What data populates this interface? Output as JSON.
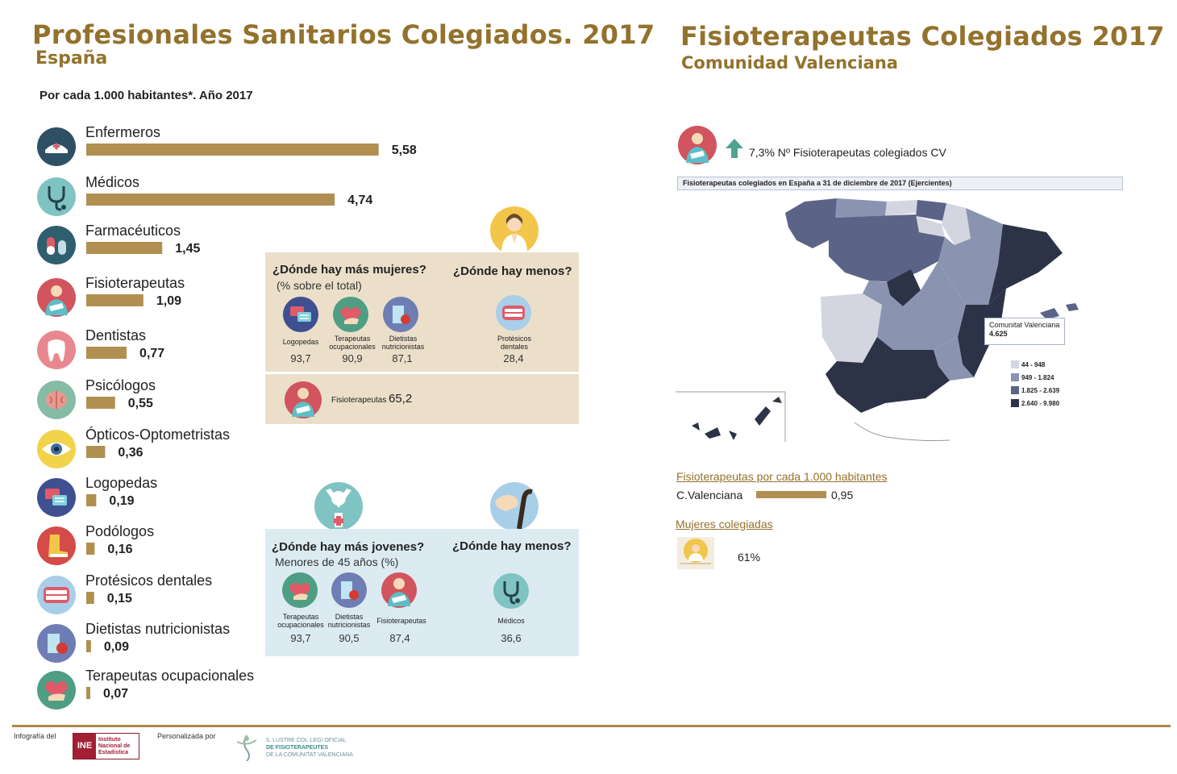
{
  "left": {
    "title": "Profesionales Sanitarios Colegiados. 2017",
    "subtitle": "España",
    "caption": "Por cada 1.000 habitantes*. Año 2017"
  },
  "chart_data": {
    "type": "bar",
    "orientation": "horizontal",
    "categories": [
      "Enfermeros",
      "Médicos",
      "Farmacéuticos",
      "Fisioterapeutas",
      "Dentistas",
      "Psicólogos",
      "Ópticos-Optometristas",
      "Logopedas",
      "Podólogos",
      "Protésicos dentales",
      "Dietistas nutricionistas",
      "Terapeutas ocupacionales"
    ],
    "values": [
      5.58,
      4.74,
      1.45,
      1.09,
      0.77,
      0.55,
      0.36,
      0.19,
      0.16,
      0.15,
      0.09,
      0.07
    ],
    "value_labels": [
      "5,58",
      "4,74",
      "1,45",
      "1,09",
      "0,77",
      "0,55",
      "0,36",
      "0,19",
      "0,16",
      "0,15",
      "0,09",
      "0,07"
    ],
    "icons": [
      "nurse-cap-icon",
      "stethoscope-icon",
      "pills-icon",
      "physio-icon",
      "tooth-icon",
      "brain-icon",
      "eye-icon",
      "speech-bubbles-icon",
      "foot-icon",
      "dentures-icon",
      "glass-apple-icon",
      "heart-hand-icon"
    ],
    "icon_colors": [
      "#2f4f64",
      "#7fc3c2",
      "#2f5f6e",
      "#d1545f",
      "#e8878f",
      "#86bba5",
      "#f2d34a",
      "#3f4f8f",
      "#d44b47",
      "#a9cfe8",
      "#6f7db5",
      "#4f9e84"
    ],
    "bar_color": "#b08f50",
    "title": "",
    "xlabel": "",
    "ylabel": ""
  },
  "women_box": {
    "q_more": "¿Dónde hay más mujeres?",
    "q_more_sub": "(% sobre el total)",
    "q_less": "¿Dónde hay menos?",
    "more_items": [
      {
        "label": "Logopedas",
        "value": "93,7"
      },
      {
        "label": "Terapeutas ocupacionales",
        "value": "90,9"
      },
      {
        "label": "Dietistas nutricionistas",
        "value": "87,1"
      }
    ],
    "less_item": {
      "label": "Protésicos dentales",
      "value": "28,4"
    },
    "physio_label": "Fisioterapeutas",
    "physio_value": "65,2"
  },
  "young_box": {
    "q_more": "¿Dónde hay más jovenes?",
    "q_more_sub": "Menores de 45 años (%)",
    "q_less": "¿Dónde hay menos?",
    "more_items": [
      {
        "label": "Terapeutas ocupacionales",
        "value": "93,7"
      },
      {
        "label": "Dietistas nutricionistas",
        "value": "90,5"
      },
      {
        "label": "Fisioterapeutas",
        "value": "87,4"
      }
    ],
    "less_item": {
      "label": "Médicos",
      "value": "36,6"
    }
  },
  "right": {
    "title": "Fisioterapeutas Colegiados 2017",
    "subtitle": "Comunidad Valenciana",
    "growth_text": "7,3% Nº Fisioterapeutas colegiados CV",
    "map_title": "Fisioterapeutas colegiados en España a 31 de diciembre de 2017 (Ejercientes)",
    "tooltip_region": "Comunitat Valenciana",
    "tooltip_value": "4.625",
    "legend": [
      {
        "label": "44 - 948",
        "color": "#d3d6e0"
      },
      {
        "label": "949 - 1.824",
        "color": "#8a94b1"
      },
      {
        "label": "1.825 - 2.639",
        "color": "#5b6486"
      },
      {
        "label": "2.640 - 9.980",
        "color": "#2d3347"
      }
    ],
    "per_thousand_head": "Fisioterapeutas por cada 1.000 habitantes",
    "cv_label": "C.Valenciana",
    "cv_value": "0,95",
    "women_head": "Mujeres colegiadas",
    "women_value": "61%"
  },
  "footer": {
    "infografia": "Infografía del",
    "ine_lines": [
      "Instituto",
      "Nacional de",
      "Estadística"
    ],
    "ine_logo": "INE",
    "personalizada": "Personalizada por",
    "colegio_lines": [
      "IL·LUSTRE COL·LEGI OFICIAL",
      "DE FISIOTERAPEUTES",
      "DE LA COMUNITAT VALENCIANA"
    ]
  }
}
